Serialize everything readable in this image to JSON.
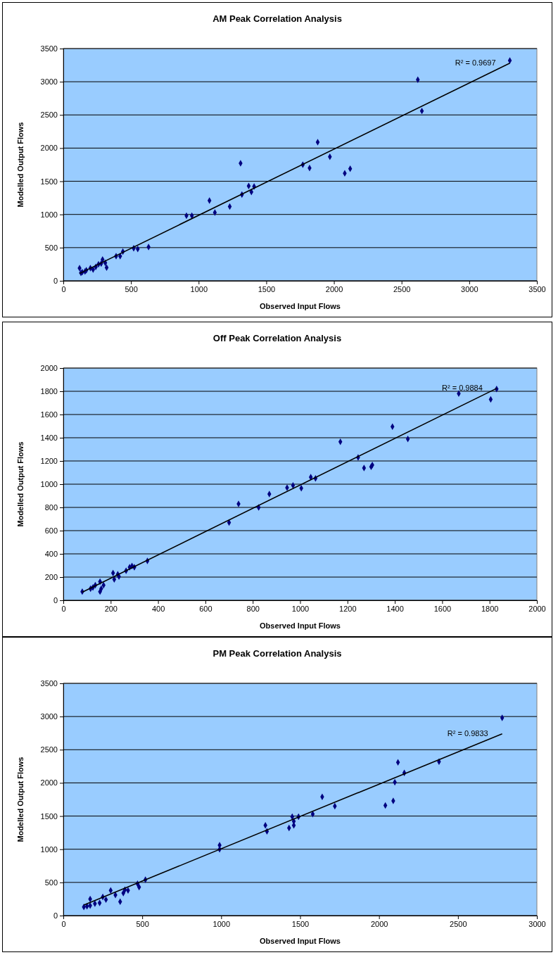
{
  "chart_data": [
    {
      "type": "scatter",
      "title": "AM Peak Correlation Analysis",
      "xlabel": "Observed Input Flows",
      "ylabel": "Modelled Output Flows",
      "xlim": [
        0,
        3500
      ],
      "xticks": [
        0,
        500,
        1000,
        1500,
        2000,
        2500,
        3000,
        3500
      ],
      "ylim": [
        0,
        3500
      ],
      "yticks": [
        0,
        500,
        1000,
        1500,
        2000,
        2500,
        3000,
        3500
      ],
      "grid": "y",
      "annotations": [
        "R² = 0.9697"
      ],
      "series": [
        {
          "color": "#000080",
          "marker": "diamond",
          "x": [
            120,
            130,
            140,
            160,
            170,
            200,
            220,
            240,
            260,
            290,
            310,
            320,
            280,
            390,
            420,
            440,
            520,
            550,
            630,
            910,
            950,
            1120,
            1230,
            1080,
            1310,
            1320,
            1370,
            1390,
            1410,
            1770,
            1820,
            1880,
            1970,
            2080,
            2120,
            2620,
            2650,
            3300
          ],
          "values": [
            190,
            120,
            130,
            140,
            160,
            190,
            170,
            210,
            250,
            320,
            270,
            200,
            260,
            370,
            370,
            440,
            490,
            480,
            510,
            980,
            980,
            1030,
            1120,
            1210,
            1770,
            1300,
            1430,
            1340,
            1420,
            1750,
            1700,
            2090,
            1870,
            1620,
            1690,
            3030,
            2560,
            3320
          ]
        },
        {
          "type": "line",
          "color": "#000000",
          "x": [
            120,
            3300
          ],
          "values": [
            110,
            3280
          ]
        }
      ]
    },
    {
      "type": "scatter",
      "title": "Off Peak Correlation Analysis",
      "xlabel": "Observed Input Flows",
      "ylabel": "Modelled Output Flows",
      "xlim": [
        0,
        2000
      ],
      "xticks": [
        0,
        200,
        400,
        600,
        800,
        1000,
        1200,
        1400,
        1600,
        1800,
        2000
      ],
      "ylim": [
        0,
        2000
      ],
      "yticks": [
        0,
        200,
        400,
        600,
        800,
        1000,
        1200,
        1400,
        1600,
        1800,
        2000
      ],
      "grid": "y",
      "annotations": [
        "R² = 0.9884"
      ],
      "series": [
        {
          "color": "#000080",
          "marker": "diamond",
          "x": [
            80,
            115,
            125,
            135,
            155,
            155,
            160,
            170,
            210,
            215,
            230,
            235,
            265,
            280,
            290,
            300,
            355,
            700,
            740,
            825,
            870,
            945,
            970,
            1005,
            1045,
            1065,
            1170,
            1245,
            1270,
            1300,
            1305,
            1390,
            1455,
            1670,
            1805,
            1830
          ],
          "values": [
            75,
            100,
            110,
            130,
            160,
            75,
            100,
            130,
            235,
            180,
            225,
            205,
            255,
            285,
            295,
            285,
            340,
            670,
            830,
            800,
            915,
            970,
            990,
            965,
            1060,
            1050,
            1365,
            1230,
            1140,
            1150,
            1165,
            1495,
            1390,
            1780,
            1730,
            1820
          ]
        },
        {
          "type": "line",
          "color": "#000000",
          "x": [
            80,
            1830
          ],
          "values": [
            70,
            1825
          ]
        }
      ]
    },
    {
      "type": "scatter",
      "title": "PM Peak Correlation Analysis",
      "xlabel": "Observed Input Flows",
      "ylabel": "Modelled Output Flows",
      "xlim": [
        0,
        3000
      ],
      "xticks": [
        0,
        500,
        1000,
        1500,
        2000,
        2500,
        3000
      ],
      "ylim": [
        0,
        3500
      ],
      "yticks": [
        0,
        500,
        1000,
        1500,
        2000,
        2500,
        3000,
        3500
      ],
      "grid": "y",
      "annotations": [
        "R² = 0.9833"
      ],
      "series": [
        {
          "color": "#000080",
          "marker": "diamond",
          "x": [
            130,
            150,
            170,
            170,
            200,
            230,
            250,
            270,
            300,
            330,
            360,
            380,
            390,
            410,
            470,
            480,
            520,
            990,
            990,
            1280,
            1290,
            1430,
            1450,
            1460,
            1460,
            1490,
            1580,
            1640,
            1720,
            2040,
            2090,
            2100,
            2120,
            2160,
            2380,
            2780
          ],
          "values": [
            130,
            140,
            150,
            250,
            180,
            190,
            280,
            240,
            380,
            310,
            210,
            340,
            390,
            380,
            480,
            430,
            540,
            1060,
            1000,
            1360,
            1270,
            1320,
            1490,
            1420,
            1360,
            1490,
            1530,
            1790,
            1650,
            1660,
            1730,
            2010,
            2310,
            2150,
            2320,
            2980
          ]
        },
        {
          "type": "line",
          "color": "#000000",
          "x": [
            130,
            2780
          ],
          "values": [
            160,
            2740
          ]
        }
      ]
    }
  ]
}
